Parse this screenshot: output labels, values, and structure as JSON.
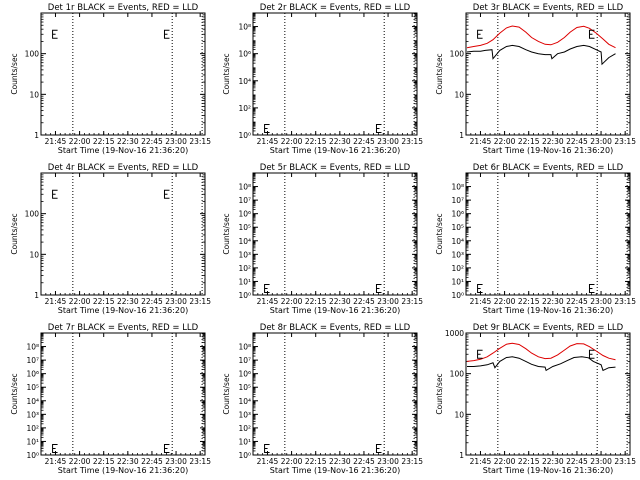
{
  "panels": [
    {
      "id": "1r",
      "title": "Det 1r BLACK = Events, RED = LLD",
      "xlabel": "Start Time (19-Nov-16 21:36:20)",
      "ylabel": "Counts/sec",
      "yscale": "log",
      "ylim": [
        1,
        1000
      ],
      "yticks": [
        {
          "v": 1,
          "label": "1"
        },
        {
          "v": 10,
          "label": "10"
        },
        {
          "v": 100,
          "label": "100"
        }
      ],
      "markers": [
        {
          "t": 21.72,
          "y": 300
        },
        {
          "t": 22.88,
          "y": 300
        }
      ],
      "events": [],
      "lld": []
    },
    {
      "id": "2r",
      "title": "Det 2r BLACK = Events, RED = LLD",
      "xlabel": "Start Time (19-Nov-16 21:36:20)",
      "ylabel": "Counts/sec",
      "yscale": "log",
      "ylim": [
        1,
        1000000000
      ],
      "yticks": [
        {
          "v": 1,
          "label": "10⁰"
        },
        {
          "v": 100,
          "label": "10²"
        },
        {
          "v": 10000,
          "label": "10⁴"
        },
        {
          "v": 1000000,
          "label": "10⁶"
        },
        {
          "v": 100000000,
          "label": "10⁸"
        }
      ],
      "markers": [
        {
          "t": 21.72,
          "y": 3
        },
        {
          "t": 22.88,
          "y": 3
        }
      ],
      "events": [],
      "lld": []
    },
    {
      "id": "3r",
      "title": "Det 3r BLACK = Events, RED = LLD",
      "xlabel": "Start Time (19-Nov-16 21:36:20)",
      "ylabel": "Counts/sec",
      "yscale": "log",
      "ylim": [
        1,
        1000
      ],
      "yticks": [
        {
          "v": 1,
          "label": "1"
        },
        {
          "v": 10,
          "label": "10"
        },
        {
          "v": 100,
          "label": "100"
        }
      ],
      "markers": [
        {
          "t": 21.72,
          "y": 300
        },
        {
          "t": 22.88,
          "y": 300
        }
      ],
      "events": [
        [
          21.61,
          110
        ],
        [
          21.68,
          115
        ],
        [
          21.75,
          115
        ],
        [
          21.8,
          120
        ],
        [
          21.87,
          125
        ],
        [
          21.88,
          75
        ],
        [
          21.95,
          120
        ],
        [
          22.02,
          150
        ],
        [
          22.08,
          160
        ],
        [
          22.15,
          150
        ],
        [
          22.22,
          125
        ],
        [
          22.28,
          110
        ],
        [
          22.35,
          100
        ],
        [
          22.42,
          95
        ],
        [
          22.48,
          95
        ],
        [
          22.49,
          75
        ],
        [
          22.55,
          100
        ],
        [
          22.62,
          110
        ],
        [
          22.68,
          130
        ],
        [
          22.75,
          150
        ],
        [
          22.82,
          160
        ],
        [
          22.88,
          150
        ],
        [
          22.95,
          125
        ],
        [
          23.0,
          110
        ],
        [
          23.01,
          55
        ],
        [
          23.08,
          80
        ],
        [
          23.15,
          100
        ]
      ],
      "lld": [
        [
          21.61,
          140
        ],
        [
          21.68,
          150
        ],
        [
          21.75,
          160
        ],
        [
          21.82,
          180
        ],
        [
          21.88,
          220
        ],
        [
          21.95,
          320
        ],
        [
          22.02,
          430
        ],
        [
          22.08,
          480
        ],
        [
          22.15,
          450
        ],
        [
          22.22,
          340
        ],
        [
          22.28,
          250
        ],
        [
          22.35,
          200
        ],
        [
          22.42,
          170
        ],
        [
          22.48,
          165
        ],
        [
          22.55,
          190
        ],
        [
          22.62,
          250
        ],
        [
          22.68,
          340
        ],
        [
          22.75,
          440
        ],
        [
          22.82,
          470
        ],
        [
          22.88,
          420
        ],
        [
          22.95,
          320
        ],
        [
          23.02,
          230
        ],
        [
          23.08,
          170
        ],
        [
          23.15,
          140
        ]
      ]
    },
    {
      "id": "4r",
      "title": "Det 4r BLACK = Events, RED = LLD",
      "xlabel": "Start Time (19-Nov-16 21:36:20)",
      "ylabel": "Counts/sec",
      "yscale": "log",
      "ylim": [
        1,
        1000
      ],
      "yticks": [
        {
          "v": 1,
          "label": "1"
        },
        {
          "v": 10,
          "label": "10"
        },
        {
          "v": 100,
          "label": "100"
        }
      ],
      "markers": [
        {
          "t": 21.72,
          "y": 300
        },
        {
          "t": 22.88,
          "y": 300
        }
      ],
      "events": [],
      "lld": []
    },
    {
      "id": "5r",
      "title": "Det 5r BLACK = Events, RED = LLD",
      "xlabel": "Start Time (19-Nov-16 21:36:20)",
      "ylabel": "Counts/sec",
      "yscale": "log",
      "ylim": [
        1,
        1000000000
      ],
      "yticks": [
        {
          "v": 1,
          "label": "10⁰"
        },
        {
          "v": 10,
          "label": "10¹"
        },
        {
          "v": 100,
          "label": "10²"
        },
        {
          "v": 1000,
          "label": "10³"
        },
        {
          "v": 10000,
          "label": "10⁴"
        },
        {
          "v": 100000,
          "label": "10⁵"
        },
        {
          "v": 1000000,
          "label": "10⁶"
        },
        {
          "v": 10000000,
          "label": "10⁷"
        },
        {
          "v": 100000000,
          "label": "10⁸"
        }
      ],
      "markers": [
        {
          "t": 21.72,
          "y": 3
        },
        {
          "t": 22.88,
          "y": 3
        }
      ],
      "events": [],
      "lld": []
    },
    {
      "id": "6r",
      "title": "Det 6r BLACK = Events, RED = LLD",
      "xlabel": "Start Time (19-Nov-16 21:36:20)",
      "ylabel": "Counts/sec",
      "yscale": "log",
      "ylim": [
        1,
        1000000000
      ],
      "yticks": [
        {
          "v": 1,
          "label": "10⁰"
        },
        {
          "v": 10,
          "label": "10¹"
        },
        {
          "v": 100,
          "label": "10²"
        },
        {
          "v": 1000,
          "label": "10³"
        },
        {
          "v": 10000,
          "label": "10⁴"
        },
        {
          "v": 100000,
          "label": "10⁵"
        },
        {
          "v": 1000000,
          "label": "10⁶"
        },
        {
          "v": 10000000,
          "label": "10⁷"
        },
        {
          "v": 100000000,
          "label": "10⁸"
        }
      ],
      "markers": [
        {
          "t": 21.72,
          "y": 3
        },
        {
          "t": 22.88,
          "y": 3
        }
      ],
      "events": [],
      "lld": []
    },
    {
      "id": "7r",
      "title": "Det 7r BLACK = Events, RED = LLD",
      "xlabel": "Start Time (19-Nov-16 21:36:20)",
      "ylabel": "Counts/sec",
      "yscale": "log",
      "ylim": [
        1,
        1000000000
      ],
      "yticks": [
        {
          "v": 1,
          "label": "10⁰"
        },
        {
          "v": 10,
          "label": "10¹"
        },
        {
          "v": 100,
          "label": "10²"
        },
        {
          "v": 1000,
          "label": "10³"
        },
        {
          "v": 10000,
          "label": "10⁴"
        },
        {
          "v": 100000,
          "label": "10⁵"
        },
        {
          "v": 1000000,
          "label": "10⁶"
        },
        {
          "v": 10000000,
          "label": "10⁷"
        },
        {
          "v": 100000000,
          "label": "10⁸"
        }
      ],
      "markers": [
        {
          "t": 21.72,
          "y": 3
        },
        {
          "t": 22.88,
          "y": 3
        }
      ],
      "events": [],
      "lld": []
    },
    {
      "id": "8r",
      "title": "Det 8r BLACK = Events, RED = LLD",
      "xlabel": "Start Time (19-Nov-16 21:36:20)",
      "ylabel": "Counts/sec",
      "yscale": "log",
      "ylim": [
        1,
        1000000000
      ],
      "yticks": [
        {
          "v": 1,
          "label": "10⁰"
        },
        {
          "v": 10,
          "label": "10¹"
        },
        {
          "v": 100,
          "label": "10²"
        },
        {
          "v": 1000,
          "label": "10³"
        },
        {
          "v": 10000,
          "label": "10⁴"
        },
        {
          "v": 100000,
          "label": "10⁵"
        },
        {
          "v": 1000000,
          "label": "10⁶"
        },
        {
          "v": 10000000,
          "label": "10⁷"
        },
        {
          "v": 100000000,
          "label": "10⁸"
        }
      ],
      "markers": [
        {
          "t": 21.72,
          "y": 3
        },
        {
          "t": 22.88,
          "y": 3
        }
      ],
      "events": [],
      "lld": []
    },
    {
      "id": "9r",
      "title": "Det 9r BLACK = Events, RED = LLD",
      "xlabel": "Start Time (19-Nov-16 21:36:20)",
      "ylabel": "Counts/sec",
      "yscale": "log",
      "ylim": [
        1,
        1000
      ],
      "yticks": [
        {
          "v": 1,
          "label": "1"
        },
        {
          "v": 10,
          "label": "10"
        },
        {
          "v": 100,
          "label": "100"
        },
        {
          "v": 1000,
          "label": "1000"
        }
      ],
      "markers": [
        {
          "t": 21.72,
          "y": 300
        },
        {
          "t": 22.88,
          "y": 300
        }
      ],
      "events": [
        [
          21.61,
          150
        ],
        [
          21.68,
          150
        ],
        [
          21.75,
          155
        ],
        [
          21.82,
          165
        ],
        [
          21.88,
          185
        ],
        [
          21.9,
          140
        ],
        [
          21.95,
          200
        ],
        [
          22.02,
          250
        ],
        [
          22.08,
          260
        ],
        [
          22.15,
          240
        ],
        [
          22.22,
          200
        ],
        [
          22.28,
          170
        ],
        [
          22.35,
          150
        ],
        [
          22.42,
          145
        ],
        [
          22.43,
          120
        ],
        [
          22.5,
          150
        ],
        [
          22.58,
          175
        ],
        [
          22.65,
          210
        ],
        [
          22.72,
          250
        ],
        [
          22.8,
          260
        ],
        [
          22.87,
          245
        ],
        [
          22.92,
          200
        ],
        [
          23.0,
          165
        ],
        [
          23.02,
          120
        ],
        [
          23.08,
          140
        ],
        [
          23.15,
          145
        ]
      ],
      "lld": [
        [
          21.61,
          200
        ],
        [
          21.68,
          210
        ],
        [
          21.75,
          225
        ],
        [
          21.82,
          260
        ],
        [
          21.88,
          320
        ],
        [
          21.95,
          420
        ],
        [
          22.02,
          530
        ],
        [
          22.08,
          560
        ],
        [
          22.15,
          520
        ],
        [
          22.22,
          410
        ],
        [
          22.28,
          320
        ],
        [
          22.35,
          260
        ],
        [
          22.42,
          235
        ],
        [
          22.48,
          240
        ],
        [
          22.55,
          290
        ],
        [
          22.62,
          380
        ],
        [
          22.68,
          480
        ],
        [
          22.75,
          550
        ],
        [
          22.82,
          540
        ],
        [
          22.88,
          460
        ],
        [
          22.95,
          360
        ],
        [
          23.02,
          280
        ],
        [
          23.08,
          240
        ],
        [
          23.15,
          220
        ]
      ]
    }
  ],
  "x_axis": {
    "min": 21.6,
    "max": 23.3,
    "ticks": [
      {
        "v": 21.75,
        "label": "21:45"
      },
      {
        "v": 22.0,
        "label": "22:00"
      },
      {
        "v": 22.25,
        "label": "22:15"
      },
      {
        "v": 22.5,
        "label": "22:30"
      },
      {
        "v": 22.75,
        "label": "22:45"
      },
      {
        "v": 23.0,
        "label": "23:00"
      },
      {
        "v": 23.25,
        "label": "23:15"
      }
    ],
    "dotted_lines": [
      21.93,
      22.96,
      23.27
    ]
  },
  "colors": {
    "events": "#000000",
    "lld": "#dd0000",
    "axis": "#000000"
  },
  "chart_data": [
    {
      "type": "line",
      "title": "Det 1r BLACK = Events, RED = LLD",
      "xlabel": "Start Time (19-Nov-16 21:36:20)",
      "ylabel": "Counts/sec",
      "ylim": [
        1,
        1000
      ],
      "yscale": "log",
      "series": []
    },
    {
      "type": "line",
      "title": "Det 2r BLACK = Events, RED = LLD",
      "xlabel": "Start Time (19-Nov-16 21:36:20)",
      "ylabel": "Counts/sec",
      "ylim": [
        1,
        1000000000
      ],
      "yscale": "log",
      "series": []
    },
    {
      "type": "line",
      "title": "Det 3r BLACK = Events, RED = LLD",
      "xlabel": "Start Time (19-Nov-16 21:36:20)",
      "ylabel": "Counts/sec",
      "ylim": [
        1,
        1000
      ],
      "yscale": "log",
      "series": [
        "events",
        "lld"
      ]
    },
    {
      "type": "line",
      "title": "Det 4r BLACK = Events, RED = LLD",
      "xlabel": "Start Time (19-Nov-16 21:36:20)",
      "ylabel": "Counts/sec",
      "ylim": [
        1,
        1000
      ],
      "yscale": "log",
      "series": []
    },
    {
      "type": "line",
      "title": "Det 5r BLACK = Events, RED = LLD",
      "xlabel": "Start Time (19-Nov-16 21:36:20)",
      "ylabel": "Counts/sec",
      "ylim": [
        1,
        1000000000
      ],
      "yscale": "log",
      "series": []
    },
    {
      "type": "line",
      "title": "Det 6r BLACK = Events, RED = LLD",
      "xlabel": "Start Time (19-Nov-16 21:36:20)",
      "ylabel": "Counts/sec",
      "ylim": [
        1,
        1000000000
      ],
      "yscale": "log",
      "series": []
    },
    {
      "type": "line",
      "title": "Det 7r BLACK = Events, RED = LLD",
      "xlabel": "Start Time (19-Nov-16 21:36:20)",
      "ylabel": "Counts/sec",
      "ylim": [
        1,
        1000000000
      ],
      "yscale": "log",
      "series": []
    },
    {
      "type": "line",
      "title": "Det 8r BLACK = Events, RED = LLD",
      "xlabel": "Start Time (19-Nov-16 21:36:20)",
      "ylabel": "Counts/sec",
      "ylim": [
        1,
        1000000000
      ],
      "yscale": "log",
      "series": []
    },
    {
      "type": "line",
      "title": "Det 9r BLACK = Events, RED = LLD",
      "xlabel": "Start Time (19-Nov-16 21:36:20)",
      "ylabel": "Counts/sec",
      "ylim": [
        1,
        1000
      ],
      "yscale": "log",
      "series": [
        "events",
        "lld"
      ]
    }
  ]
}
